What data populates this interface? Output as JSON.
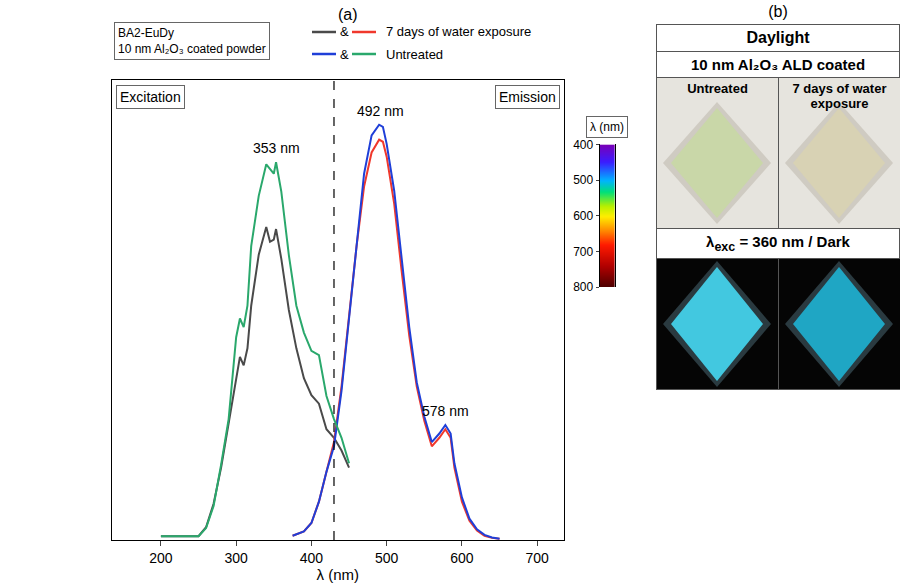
{
  "chart_data": {
    "type": "line",
    "panel_label": "(a)",
    "legend_title": [
      "BA2-EuDy",
      "10 nm Al₂O₃ coated powder"
    ],
    "legend_joiner": "&",
    "legend": "top left",
    "panel_titles": {
      "left": "Excitation",
      "right": "Emission"
    },
    "xlabel": "λ (nm)",
    "xlim": [
      135,
      735
    ],
    "xticks": [
      200,
      300,
      400,
      500,
      600,
      700
    ],
    "ylim": [
      0,
      108
    ],
    "tick_labels": "x",
    "grid": false,
    "dashed_line_x": 430,
    "annotations": [
      {
        "text": "353 nm",
        "x": 353
      },
      {
        "text": "492 nm",
        "x": 492
      },
      {
        "text": "578 nm",
        "x": 578
      }
    ],
    "colorbar": {
      "title": "λ (nm)",
      "range": [
        400,
        800
      ],
      "ticks": [
        400,
        500,
        600,
        700,
        800
      ]
    },
    "series": [
      {
        "name": "7 days of water exposure",
        "color": "#4a4a4a",
        "x": [
          200,
          250,
          260,
          270,
          280,
          290,
          300,
          305,
          310,
          315,
          320,
          330,
          340,
          345,
          350,
          353,
          360,
          370,
          380,
          390,
          400,
          410,
          415,
          420,
          430,
          440,
          450
        ],
        "values": [
          0.9,
          0.9,
          3,
          8.5,
          17,
          27,
          37,
          43,
          41,
          45,
          55,
          67,
          73.5,
          70,
          70.5,
          73,
          66,
          54,
          45,
          38,
          34,
          32,
          29,
          26,
          24,
          21,
          17
        ]
      },
      {
        "name": "7 days of water exposure",
        "color": "#f0382c",
        "x": [
          375,
          390,
          400,
          410,
          420,
          430,
          440,
          450,
          460,
          470,
          480,
          490,
          495,
          500,
          510,
          520,
          530,
          540,
          550,
          560,
          570,
          578,
          585,
          590,
          600,
          610,
          620,
          630,
          640,
          650
        ],
        "values": [
          1,
          2,
          4,
          9,
          16,
          23,
          36,
          53,
          69,
          83,
          91,
          94,
          93.5,
          90,
          79,
          63,
          48,
          36,
          28,
          22,
          24,
          26,
          24,
          17,
          9,
          4.5,
          2.2,
          1,
          0.5,
          0.3
        ]
      },
      {
        "name": "Untreated",
        "color": "#1f3fd8",
        "x": [
          375,
          390,
          400,
          410,
          420,
          430,
          440,
          450,
          460,
          470,
          480,
          490,
          495,
          500,
          510,
          520,
          530,
          540,
          550,
          560,
          570,
          578,
          585,
          590,
          600,
          610,
          620,
          630,
          640,
          650
        ],
        "values": [
          1,
          2,
          4,
          9,
          16,
          22,
          35,
          52,
          70,
          86,
          95,
          97.5,
          97,
          93,
          82,
          66,
          50,
          37,
          29,
          23,
          25,
          27,
          25,
          18,
          10,
          5,
          2.5,
          1.2,
          0.6,
          0.3
        ]
      },
      {
        "name": "Untreated",
        "color": "#2aa86c",
        "x": [
          200,
          250,
          260,
          270,
          280,
          290,
          300,
          305,
          310,
          315,
          320,
          330,
          340,
          345,
          350,
          353,
          360,
          370,
          380,
          390,
          400,
          410,
          415,
          420,
          430,
          440,
          450
        ],
        "values": [
          0.9,
          0.9,
          2.8,
          8,
          17.7,
          28.4,
          47.6,
          52,
          50,
          55,
          69,
          80.8,
          88.2,
          87,
          86,
          88.7,
          81.8,
          66.9,
          55,
          48.7,
          44.4,
          43.4,
          39,
          33.8,
          28.4,
          24,
          18
        ]
      }
    ]
  },
  "panel_b": {
    "label": "(b)",
    "header": "Daylight",
    "subheader": "10 nm Al₂O₃ ALD coated",
    "columns": [
      "Untreated",
      "7 days of water exposure"
    ],
    "dark_header": {
      "symbol": "λ",
      "subscript": "exc",
      "rest": " = 360 nm / Dark"
    }
  }
}
